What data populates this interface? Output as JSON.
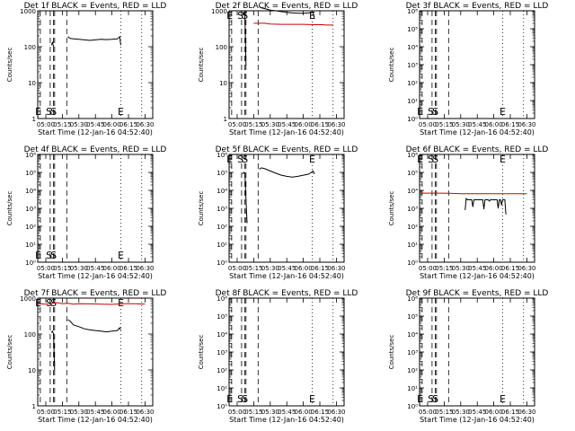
{
  "figure": {
    "background": "#ffffff",
    "colors": {
      "events": "#000000",
      "lld": "#cc0000"
    },
    "x_tick_labels": [
      "05:00",
      "05:15",
      "05:30",
      "05:45",
      "06:00",
      "06:15",
      "06:30"
    ]
  },
  "chart_data": [
    {
      "type": "line",
      "title": "Det 1f BLACK = Events, RED = LLD",
      "xlabel": "Start Time (12-Jan-16 04:52:40)",
      "ylabel": "Counts/sec",
      "yscale": "log",
      "ylim": [
        1,
        1000
      ],
      "y_tick_labels": [
        "1",
        "10",
        "100",
        "1000"
      ],
      "markers": [
        "E",
        "S",
        "S",
        "E"
      ],
      "series": [
        {
          "x": [
            "05:05",
            "05:06",
            "05:07"
          ],
          "y": [
            110,
            130,
            100
          ]
        },
        {
          "x": [
            "05:20",
            "05:22",
            "05:25",
            "05:30",
            "05:35",
            "05:40",
            "05:45",
            "05:50",
            "05:55",
            "06:00",
            "06:05",
            "06:07",
            "06:08"
          ],
          "y": [
            190,
            170,
            165,
            160,
            155,
            150,
            155,
            160,
            158,
            160,
            165,
            190,
            110
          ]
        }
      ]
    },
    {
      "type": "line",
      "title": "Det 2f BLACK = Events, RED = LLD",
      "xlabel": "Start Time (12-Jan-16 04:52:40)",
      "ylabel": "Counts/sec",
      "yscale": "log",
      "ylim": [
        1,
        1000
      ],
      "y_tick_labels": [
        "1",
        "10",
        "100",
        "1000"
      ],
      "markers": [
        "E",
        "S",
        "S",
        "E"
      ],
      "series": [
        {
          "x": [
            "05:05",
            "05:06",
            "05:07",
            "05:08"
          ],
          "y": [
            750,
            850,
            800,
            30
          ]
        },
        {
          "x": [
            "05:15",
            "05:17",
            "05:20",
            "05:25",
            "05:30",
            "05:40",
            "05:50",
            "06:00",
            "06:10",
            "06:18",
            "06:20",
            "06:27"
          ],
          "y": [
            450,
            450,
            450,
            450,
            430,
            420,
            420,
            420,
            410,
            410,
            400,
            400
          ]
        },
        {
          "x": [
            "05:20",
            "05:22",
            "05:25",
            "05:30",
            "05:35",
            "05:40",
            "05:45",
            "05:50",
            "05:55",
            "06:00",
            "06:05",
            "06:09",
            "06:10"
          ],
          "y": [
            1300,
            1200,
            1150,
            1050,
            1000,
            950,
            900,
            870,
            850,
            850,
            870,
            900,
            600
          ]
        }
      ]
    },
    {
      "type": "line",
      "title": "Det 3f BLACK = Events, RED = LLD",
      "xlabel": "Start Time (12-Jan-16 04:52:40)",
      "ylabel": "Counts/sec",
      "yscale": "log",
      "ylim": [
        1,
        1000000
      ],
      "y_tick_labels": [
        "10⁰",
        "10¹",
        "10²",
        "10³",
        "10⁴",
        "10⁵",
        "10⁶"
      ],
      "markers": [
        "E",
        "S",
        "S",
        "E"
      ],
      "series": []
    },
    {
      "type": "line",
      "title": "Det 4f BLACK = Events, RED = LLD",
      "xlabel": "Start Time (12-Jan-16 04:52:40)",
      "ylabel": "Counts/sec",
      "yscale": "log",
      "ylim": [
        1,
        1000000
      ],
      "y_tick_labels": [
        "10⁰",
        "10¹",
        "10²",
        "10³",
        "10⁴",
        "10⁵",
        "10⁶"
      ],
      "markers": [
        "E",
        "S",
        "S",
        "E"
      ],
      "series": []
    },
    {
      "type": "line",
      "title": "Det 5f BLACK = Events, RED = LLD",
      "xlabel": "Start Time (12-Jan-16 04:52:40)",
      "ylabel": "Counts/sec",
      "yscale": "log",
      "ylim": [
        1,
        1000000
      ],
      "y_tick_labels": [
        "10⁰",
        "10¹",
        "10²",
        "10³",
        "10⁴",
        "10⁵",
        "10⁶"
      ],
      "markers": [
        "E",
        "S",
        "S",
        "E"
      ],
      "series": [
        {
          "x": [
            "05:05",
            "05:06",
            "05:07",
            "05:08",
            "05:09"
          ],
          "y": [
            80000,
            100000,
            90000,
            3000,
            150
          ]
        },
        {
          "x": [
            "05:20",
            "05:22",
            "05:25",
            "05:30",
            "05:35",
            "05:40",
            "05:45",
            "05:50",
            "05:55",
            "06:00",
            "06:05",
            "06:09",
            "06:10"
          ],
          "y": [
            150000,
            180000,
            160000,
            120000,
            90000,
            70000,
            60000,
            55000,
            60000,
            70000,
            80000,
            120000,
            80000
          ]
        }
      ]
    },
    {
      "type": "line",
      "title": "Det 6f BLACK = Events, RED = LLD",
      "xlabel": "Start Time (12-Jan-16 04:52:40)",
      "ylabel": "Counts/sec",
      "yscale": "log",
      "ylim": [
        1,
        1000000
      ],
      "y_tick_labels": [
        "10⁰",
        "10¹",
        "10²",
        "10³",
        "10⁴",
        "10⁵",
        "10⁶"
      ],
      "markers": [
        "E",
        "S",
        "S",
        "E"
      ],
      "series": [
        {
          "x": [
            "04:53",
            "05:10",
            "05:20",
            "05:30",
            "05:40",
            "05:50",
            "06:00",
            "06:10",
            "06:20",
            "06:30"
          ],
          "y": [
            7000,
            7000,
            6800,
            6500,
            6500,
            6500,
            6500,
            6500,
            6500,
            6500
          ]
        },
        {
          "x": [
            "05:34",
            "05:35",
            "05:36",
            "05:38",
            "05:40",
            "05:41",
            "05:42",
            "05:50",
            "05:51",
            "05:52",
            "05:55",
            "05:56",
            "05:57",
            "06:00",
            "06:03",
            "06:04",
            "06:05",
            "06:06",
            "06:07",
            "06:08",
            "06:09",
            "06:10",
            "06:11"
          ],
          "y": [
            800,
            3500,
            3000,
            3000,
            3000,
            1200,
            3000,
            3000,
            900,
            3000,
            3000,
            2500,
            3000,
            3000,
            3000,
            1000,
            3000,
            3000,
            1500,
            3000,
            3000,
            3000,
            450
          ]
        }
      ]
    },
    {
      "type": "line",
      "title": "Det 7f BLACK = Events, RED = LLD",
      "xlabel": "Start Time (12-Jan-16 04:52:40)",
      "ylabel": "Counts/sec",
      "yscale": "log",
      "ylim": [
        1,
        1000
      ],
      "y_tick_labels": [
        "1",
        "10",
        "100",
        "1000"
      ],
      "markers": [
        "E",
        "S",
        "S",
        "E"
      ],
      "series": [
        {
          "x": [
            "05:05",
            "05:06",
            "05:07",
            "05:08"
          ],
          "y": [
            110,
            120,
            100,
            10
          ]
        },
        {
          "x": [
            "04:53",
            "05:00",
            "05:05",
            "05:10",
            "05:15",
            "05:20",
            "05:25",
            "05:30",
            "05:40",
            "05:50",
            "06:00",
            "06:10",
            "06:20",
            "06:30"
          ],
          "y": [
            700,
            680,
            700,
            750,
            700,
            720,
            680,
            700,
            690,
            680,
            670,
            700,
            700,
            680
          ]
        },
        {
          "x": [
            "05:20",
            "05:22",
            "05:25",
            "05:30",
            "05:35",
            "05:40",
            "05:45",
            "05:50",
            "05:55",
            "06:00",
            "06:05",
            "06:07",
            "06:08"
          ],
          "y": [
            250,
            230,
            180,
            160,
            140,
            130,
            125,
            120,
            115,
            120,
            125,
            150,
            130
          ]
        }
      ]
    },
    {
      "type": "line",
      "title": "Det 8f BLACK = Events, RED = LLD",
      "xlabel": "Start Time (12-Jan-16 04:52:40)",
      "ylabel": "Counts/sec",
      "yscale": "log",
      "ylim": [
        1,
        1000000
      ],
      "y_tick_labels": [
        "10⁰",
        "10¹",
        "10²",
        "10³",
        "10⁴",
        "10⁵",
        "10⁶"
      ],
      "markers": [
        "E",
        "S",
        "S",
        "E"
      ],
      "series": []
    },
    {
      "type": "line",
      "title": "Det 9f BLACK = Events, RED = LLD",
      "xlabel": "Start Time (12-Jan-16 04:52:40)",
      "ylabel": "Counts/sec",
      "yscale": "log",
      "ylim": [
        1,
        1000000
      ],
      "y_tick_labels": [
        "10⁰",
        "10¹",
        "10²",
        "10³",
        "10⁴",
        "10⁵",
        "10⁶"
      ],
      "markers": [
        "E",
        "S",
        "S",
        "E"
      ],
      "series": []
    }
  ]
}
